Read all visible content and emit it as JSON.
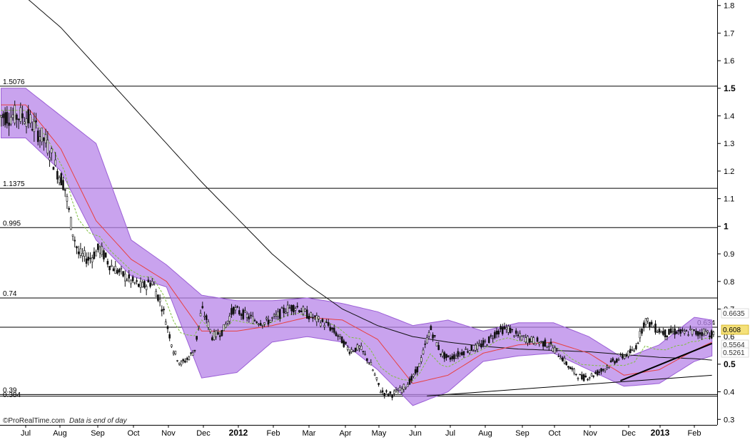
{
  "credit": {
    "brand": "©ProRealTime.com",
    "note": "Data is end of day"
  },
  "colors": {
    "background": "#ffffff",
    "band_fill": "#b784e8",
    "band_edge": "#9b5fd6",
    "ma_short": "#e84040",
    "ma_mid": "#7fbf3f",
    "ma_long": "#111111",
    "candle": "#111111",
    "price_badge": "#f5e17a"
  },
  "chart_data": {
    "type": "line",
    "title": "",
    "xlabel": "",
    "ylabel": "",
    "ylim": [
      0.28,
      1.82
    ],
    "x_ticks": [
      "Jul",
      "Aug",
      "Sep",
      "Oct",
      "Nov",
      "Dec",
      "2012",
      "Feb",
      "Mar",
      "Apr",
      "May",
      "Jun",
      "Jul",
      "Aug",
      "Sep",
      "Oct",
      "Nov",
      "Dec",
      "2013",
      "Feb"
    ],
    "y_ticks": [
      {
        "value": 0.3,
        "label": "0.3",
        "bold": false
      },
      {
        "value": 0.4,
        "label": "0.4",
        "bold": false
      },
      {
        "value": 0.5,
        "label": "0.5",
        "bold": true
      },
      {
        "value": 0.6,
        "label": "0.6",
        "bold": false
      },
      {
        "value": 0.7,
        "label": "0.7",
        "bold": false
      },
      {
        "value": 0.8,
        "label": "0.8",
        "bold": false
      },
      {
        "value": 0.9,
        "label": "0.9",
        "bold": false
      },
      {
        "value": 1.0,
        "label": "1",
        "bold": true
      },
      {
        "value": 1.1,
        "label": "1.1",
        "bold": false
      },
      {
        "value": 1.2,
        "label": "1.2",
        "bold": false
      },
      {
        "value": 1.3,
        "label": "1.3",
        "bold": false
      },
      {
        "value": 1.4,
        "label": "1.4",
        "bold": false
      },
      {
        "value": 1.5,
        "label": "1.5",
        "bold": true
      },
      {
        "value": 1.6,
        "label": "1.6",
        "bold": false
      },
      {
        "value": 1.7,
        "label": "1.7",
        "bold": false
      },
      {
        "value": 1.8,
        "label": "1.8",
        "bold": false
      }
    ],
    "horizontal_levels": [
      {
        "value": 1.5076,
        "label": "1.5076"
      },
      {
        "value": 1.1375,
        "label": "1.1375"
      },
      {
        "value": 0.995,
        "label": "0.995"
      },
      {
        "value": 0.74,
        "label": "0.74"
      },
      {
        "value": 0.634,
        "label": "0.634"
      },
      {
        "value": 0.39,
        "label": "0.39"
      },
      {
        "value": 0.384,
        "label": "0.384"
      }
    ],
    "right_labels": [
      {
        "value": 0.6635,
        "label": "0.6635"
      },
      {
        "value": 0.608,
        "label": "0.608"
      },
      {
        "value": 0.5564,
        "label": "0.5564"
      },
      {
        "value": 0.5261,
        "label": "0.5261"
      }
    ],
    "last_price": "0.608",
    "series": [
      {
        "key": "price",
        "t": [
          0,
          0.3,
          0.6,
          0.9,
          1.1,
          1.3,
          1.5,
          1.8,
          2.1,
          2.4,
          2.7,
          3.0,
          3.3,
          3.6,
          3.9,
          4.0,
          4.2,
          4.4,
          4.6,
          4.8,
          5.0,
          5.15,
          5.3,
          5.6,
          5.9,
          6.2,
          6.5,
          6.8,
          7.1,
          7.4,
          7.7,
          8.0,
          8.3,
          8.6,
          8.9,
          9.2,
          9.5,
          9.8,
          10.1,
          10.4,
          10.7,
          11.0,
          11.2,
          11.5,
          11.8,
          12.0,
          12.2,
          12.5,
          12.8,
          13.1,
          13.4,
          13.7,
          14.0,
          14.3,
          14.6,
          14.9,
          15.2,
          15.5,
          15.8,
          16.1,
          16.4,
          16.7,
          17.0,
          17.3,
          17.6,
          17.9,
          18.2,
          18.5,
          18.7,
          18.9,
          19.1,
          19.3,
          19.5
        ],
        "value": [
          1.4,
          1.35,
          1.3,
          1.2,
          1.15,
          1.0,
          0.9,
          0.88,
          0.92,
          0.86,
          0.83,
          0.8,
          0.78,
          0.8,
          0.7,
          0.65,
          0.55,
          0.5,
          0.52,
          0.55,
          0.7,
          0.66,
          0.6,
          0.62,
          0.7,
          0.68,
          0.66,
          0.65,
          0.67,
          0.7,
          0.71,
          0.68,
          0.66,
          0.64,
          0.6,
          0.55,
          0.56,
          0.5,
          0.4,
          0.39,
          0.41,
          0.45,
          0.5,
          0.63,
          0.54,
          0.52,
          0.53,
          0.55,
          0.56,
          0.58,
          0.62,
          0.63,
          0.6,
          0.59,
          0.58,
          0.57,
          0.53,
          0.48,
          0.45,
          0.46,
          0.48,
          0.51,
          0.53,
          0.55,
          0.66,
          0.63,
          0.61,
          0.62,
          0.61,
          0.62,
          0.61,
          0.62,
          0.608
        ]
      },
      {
        "key": "ma_long",
        "t": [
          0,
          1,
          2,
          3,
          4,
          5,
          6,
          7,
          8,
          9,
          10,
          11,
          12,
          13,
          14,
          15,
          16,
          17,
          18,
          19,
          19.5
        ],
        "value": [
          1.83,
          1.72,
          1.58,
          1.44,
          1.3,
          1.16,
          1.03,
          0.9,
          0.79,
          0.7,
          0.64,
          0.6,
          0.58,
          0.565,
          0.555,
          0.55,
          0.545,
          0.535,
          0.525,
          0.52,
          0.515
        ]
      },
      {
        "key": "ma_short",
        "t": [
          0,
          1,
          2,
          3,
          4,
          5,
          6,
          7,
          8,
          9,
          10,
          11,
          12,
          13,
          14,
          15,
          16,
          17,
          18,
          19,
          19.5
        ],
        "value": [
          1.44,
          1.28,
          1.02,
          0.88,
          0.8,
          0.62,
          0.62,
          0.64,
          0.67,
          0.66,
          0.59,
          0.43,
          0.46,
          0.54,
          0.57,
          0.58,
          0.54,
          0.46,
          0.48,
          0.55,
          0.58
        ]
      },
      {
        "key": "band_upper",
        "t": [
          0,
          1,
          2,
          3,
          4,
          5,
          6,
          7,
          8,
          9,
          10,
          11,
          12,
          13,
          14,
          15,
          16,
          17,
          18,
          19,
          19.5
        ],
        "value": [
          1.5,
          1.4,
          1.3,
          0.95,
          0.86,
          0.75,
          0.73,
          0.73,
          0.74,
          0.72,
          0.69,
          0.64,
          0.66,
          0.62,
          0.65,
          0.65,
          0.6,
          0.52,
          0.57,
          0.67,
          0.66
        ]
      },
      {
        "key": "band_lower",
        "t": [
          0,
          1,
          2,
          3,
          4,
          5,
          6,
          7,
          8,
          9,
          10,
          11,
          12,
          13,
          14,
          15,
          16,
          17,
          18,
          19,
          19.5
        ],
        "value": [
          1.32,
          1.2,
          0.95,
          0.82,
          0.78,
          0.45,
          0.47,
          0.58,
          0.6,
          0.58,
          0.48,
          0.35,
          0.4,
          0.51,
          0.53,
          0.54,
          0.48,
          0.42,
          0.43,
          0.51,
          0.53
        ]
      },
      {
        "key": "trend_long",
        "t": [
          11.4,
          19.5
        ],
        "value": [
          0.385,
          0.46
        ]
      },
      {
        "key": "trend_short",
        "t": [
          16.9,
          19.5
        ],
        "value": [
          0.44,
          0.575
        ]
      }
    ]
  }
}
